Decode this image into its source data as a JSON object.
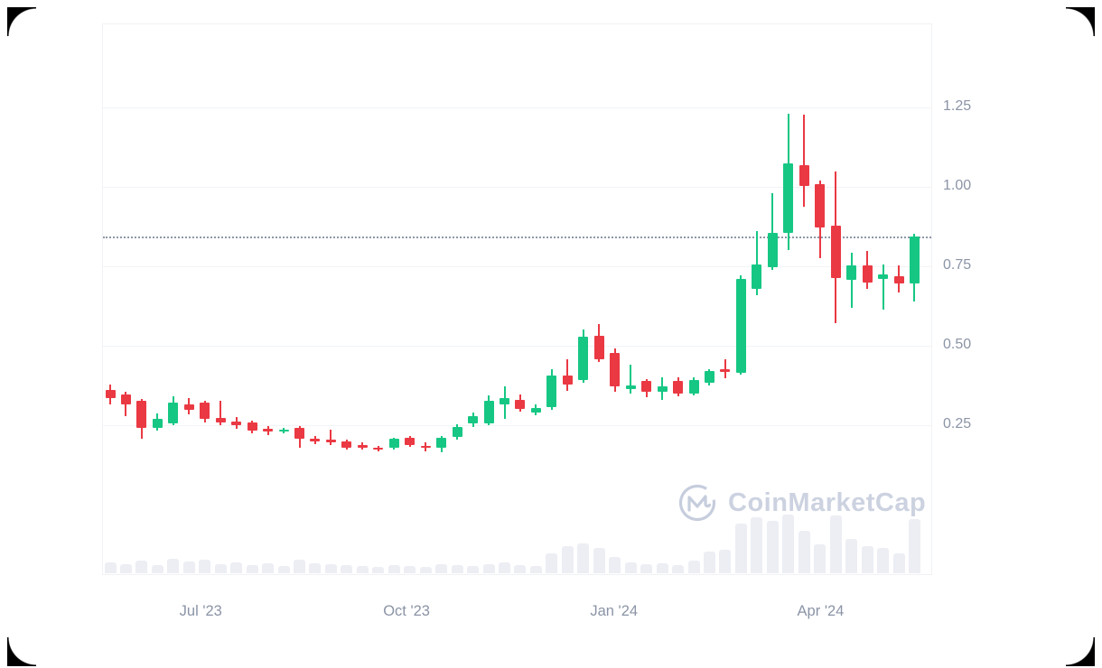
{
  "watermark": {
    "text": "CoinMarketCap",
    "color": "#ccd2e0"
  },
  "chart_data": {
    "type": "candlestick",
    "title": "",
    "interval": "weekly",
    "legend": "none",
    "grid": "horizontal",
    "colors": {
      "up": "#16c784",
      "down": "#ea3943",
      "volume": "#eceef4",
      "axis_text": "#8b94a6"
    },
    "y_axis": {
      "side": "right",
      "ticks": [
        {
          "label": "1.25",
          "value": 1.25
        },
        {
          "label": "1.00",
          "value": 1.0
        },
        {
          "label": "0.75",
          "value": 0.75
        },
        {
          "label": "0.50",
          "value": 0.5
        },
        {
          "label": "0.25",
          "value": 0.25
        }
      ]
    },
    "x_axis": {
      "ticks": [
        {
          "label": "Jul '23",
          "candle_index": 5.8
        },
        {
          "label": "Oct '23",
          "candle_index": 18.85
        },
        {
          "label": "Jan '24",
          "candle_index": 32.0
        },
        {
          "label": "Apr '24",
          "candle_index": 45.1
        }
      ]
    },
    "current_price_line": {
      "value": 0.845,
      "style": "dotted"
    },
    "candles": [
      {
        "o": 0.36,
        "h": 0.378,
        "l": 0.315,
        "c": 0.335,
        "v": 12
      },
      {
        "o": 0.347,
        "h": 0.356,
        "l": 0.278,
        "c": 0.315,
        "v": 10
      },
      {
        "o": 0.327,
        "h": 0.332,
        "l": 0.207,
        "c": 0.241,
        "v": 14
      },
      {
        "o": 0.241,
        "h": 0.287,
        "l": 0.233,
        "c": 0.27,
        "v": 9
      },
      {
        "o": 0.256,
        "h": 0.341,
        "l": 0.25,
        "c": 0.321,
        "v": 16
      },
      {
        "o": 0.315,
        "h": 0.335,
        "l": 0.284,
        "c": 0.298,
        "v": 13
      },
      {
        "o": 0.321,
        "h": 0.327,
        "l": 0.258,
        "c": 0.27,
        "v": 15
      },
      {
        "o": 0.273,
        "h": 0.327,
        "l": 0.25,
        "c": 0.258,
        "v": 10
      },
      {
        "o": 0.26,
        "h": 0.275,
        "l": 0.238,
        "c": 0.25,
        "v": 12
      },
      {
        "o": 0.258,
        "h": 0.263,
        "l": 0.224,
        "c": 0.233,
        "v": 9
      },
      {
        "o": 0.238,
        "h": 0.247,
        "l": 0.219,
        "c": 0.232,
        "v": 11
      },
      {
        "o": 0.232,
        "h": 0.241,
        "l": 0.224,
        "c": 0.236,
        "v": 8
      },
      {
        "o": 0.241,
        "h": 0.247,
        "l": 0.179,
        "c": 0.207,
        "v": 15
      },
      {
        "o": 0.207,
        "h": 0.216,
        "l": 0.19,
        "c": 0.198,
        "v": 11
      },
      {
        "o": 0.205,
        "h": 0.236,
        "l": 0.188,
        "c": 0.196,
        "v": 10
      },
      {
        "o": 0.199,
        "h": 0.205,
        "l": 0.173,
        "c": 0.179,
        "v": 9
      },
      {
        "o": 0.187,
        "h": 0.196,
        "l": 0.174,
        "c": 0.183,
        "v": 8
      },
      {
        "o": 0.18,
        "h": 0.186,
        "l": 0.168,
        "c": 0.174,
        "v": 7
      },
      {
        "o": 0.179,
        "h": 0.21,
        "l": 0.173,
        "c": 0.207,
        "v": 9
      },
      {
        "o": 0.21,
        "h": 0.216,
        "l": 0.181,
        "c": 0.188,
        "v": 8
      },
      {
        "o": 0.185,
        "h": 0.196,
        "l": 0.169,
        "c": 0.18,
        "v": 7
      },
      {
        "o": 0.179,
        "h": 0.216,
        "l": 0.165,
        "c": 0.21,
        "v": 10
      },
      {
        "o": 0.212,
        "h": 0.252,
        "l": 0.204,
        "c": 0.245,
        "v": 9
      },
      {
        "o": 0.256,
        "h": 0.29,
        "l": 0.244,
        "c": 0.277,
        "v": 8
      },
      {
        "o": 0.257,
        "h": 0.345,
        "l": 0.25,
        "c": 0.327,
        "v": 10
      },
      {
        "o": 0.315,
        "h": 0.372,
        "l": 0.271,
        "c": 0.335,
        "v": 12
      },
      {
        "o": 0.33,
        "h": 0.347,
        "l": 0.293,
        "c": 0.301,
        "v": 9
      },
      {
        "o": 0.291,
        "h": 0.316,
        "l": 0.281,
        "c": 0.305,
        "v": 8
      },
      {
        "o": 0.307,
        "h": 0.426,
        "l": 0.299,
        "c": 0.406,
        "v": 22
      },
      {
        "o": 0.406,
        "h": 0.458,
        "l": 0.359,
        "c": 0.378,
        "v": 30
      },
      {
        "o": 0.392,
        "h": 0.551,
        "l": 0.384,
        "c": 0.528,
        "v": 33
      },
      {
        "o": 0.53,
        "h": 0.568,
        "l": 0.45,
        "c": 0.458,
        "v": 28
      },
      {
        "o": 0.477,
        "h": 0.491,
        "l": 0.355,
        "c": 0.372,
        "v": 18
      },
      {
        "o": 0.365,
        "h": 0.44,
        "l": 0.349,
        "c": 0.375,
        "v": 12
      },
      {
        "o": 0.389,
        "h": 0.396,
        "l": 0.338,
        "c": 0.355,
        "v": 10
      },
      {
        "o": 0.355,
        "h": 0.401,
        "l": 0.33,
        "c": 0.372,
        "v": 11
      },
      {
        "o": 0.389,
        "h": 0.401,
        "l": 0.34,
        "c": 0.349,
        "v": 9
      },
      {
        "o": 0.349,
        "h": 0.4,
        "l": 0.344,
        "c": 0.392,
        "v": 14
      },
      {
        "o": 0.383,
        "h": 0.426,
        "l": 0.374,
        "c": 0.42,
        "v": 24
      },
      {
        "o": 0.425,
        "h": 0.456,
        "l": 0.398,
        "c": 0.417,
        "v": 26
      },
      {
        "o": 0.415,
        "h": 0.722,
        "l": 0.408,
        "c": 0.71,
        "v": 55
      },
      {
        "o": 0.679,
        "h": 0.861,
        "l": 0.659,
        "c": 0.756,
        "v": 62
      },
      {
        "o": 0.747,
        "h": 0.98,
        "l": 0.738,
        "c": 0.855,
        "v": 58
      },
      {
        "o": 0.855,
        "h": 1.23,
        "l": 0.801,
        "c": 1.074,
        "v": 65
      },
      {
        "o": 1.068,
        "h": 1.227,
        "l": 0.937,
        "c": 1.003,
        "v": 47
      },
      {
        "o": 1.009,
        "h": 1.02,
        "l": 0.775,
        "c": 0.872,
        "v": 32
      },
      {
        "o": 0.878,
        "h": 1.048,
        "l": 0.571,
        "c": 0.713,
        "v": 64
      },
      {
        "o": 0.707,
        "h": 0.793,
        "l": 0.62,
        "c": 0.753,
        "v": 38
      },
      {
        "o": 0.753,
        "h": 0.798,
        "l": 0.68,
        "c": 0.699,
        "v": 30
      },
      {
        "o": 0.71,
        "h": 0.756,
        "l": 0.614,
        "c": 0.725,
        "v": 28
      },
      {
        "o": 0.719,
        "h": 0.753,
        "l": 0.667,
        "c": 0.696,
        "v": 22
      },
      {
        "o": 0.696,
        "h": 0.852,
        "l": 0.639,
        "c": 0.844,
        "v": 60
      }
    ]
  }
}
